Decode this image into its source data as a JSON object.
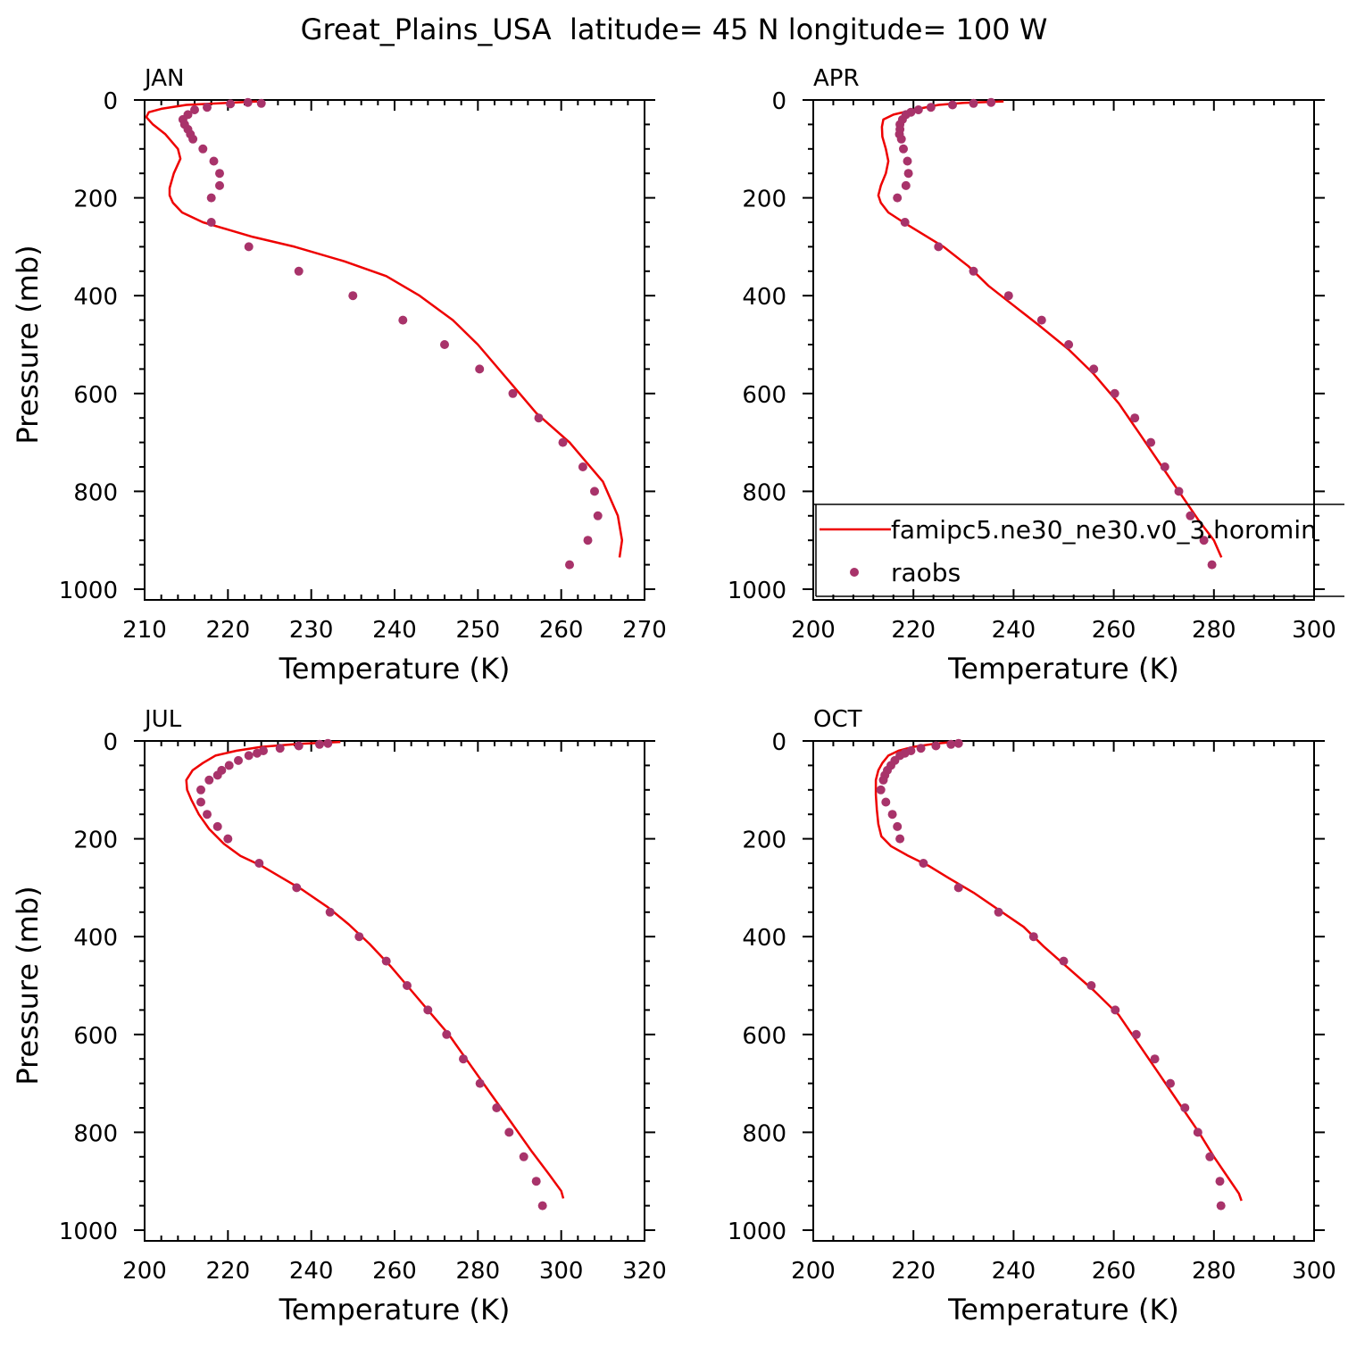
{
  "figure_title": "Great_Plains_USA  latitude= 45 N longitude= 100 W",
  "colors": {
    "model": "#ee0000",
    "obs": "#a8336a",
    "axis": "#000000"
  },
  "legend": {
    "model_label": "famipc5.ne30_ne30.v0_3.horomin",
    "obs_label": "raobs",
    "marker_icon": "dot-marker-icon",
    "line_icon": "line-sample-icon"
  },
  "chart_data": [
    {
      "type": "scatter",
      "panel": "JAN",
      "xlabel": "Temperature (K)",
      "ylabel": "Pressure (mb)",
      "xlim": [
        210,
        270
      ],
      "ylim": [
        1000,
        0
      ],
      "xticks": [
        "210",
        "220",
        "230",
        "240",
        "250",
        "260",
        "270"
      ],
      "yticks": [
        "0",
        "200",
        "400",
        "600",
        "800",
        "1000"
      ],
      "series": [
        {
          "name": "famipc5.ne30_ne30.v0_3.horomin",
          "style": "line",
          "points": [
            [
              223.5,
              3
            ],
            [
              215,
              10
            ],
            [
              212,
              18
            ],
            [
              210.5,
              25
            ],
            [
              210.2,
              35
            ],
            [
              211,
              50
            ],
            [
              212.5,
              70
            ],
            [
              214,
              100
            ],
            [
              214.3,
              120
            ],
            [
              213.5,
              150
            ],
            [
              213,
              180
            ],
            [
              213,
              195
            ],
            [
              213.4,
              210
            ],
            [
              214.5,
              230
            ],
            [
              217,
              250
            ],
            [
              220,
              265
            ],
            [
              223,
              280
            ],
            [
              228,
              300
            ],
            [
              234,
              330
            ],
            [
              239,
              360
            ],
            [
              243,
              400
            ],
            [
              247,
              450
            ],
            [
              250,
              500
            ],
            [
              254,
              580
            ],
            [
              257,
              640
            ],
            [
              261,
              700
            ],
            [
              265,
              780
            ],
            [
              266.8,
              850
            ],
            [
              267.3,
              900
            ],
            [
              267,
              935
            ]
          ]
        },
        {
          "name": "raobs",
          "style": "markers",
          "points": [
            [
              222.4,
              5
            ],
            [
              224,
              7
            ],
            [
              220.3,
              8
            ],
            [
              217.5,
              15
            ],
            [
              216,
              20
            ],
            [
              215.2,
              30
            ],
            [
              214.6,
              40
            ],
            [
              214.8,
              50
            ],
            [
              215.2,
              60
            ],
            [
              215.5,
              70
            ],
            [
              215.8,
              80
            ],
            [
              217,
              100
            ],
            [
              218.3,
              125
            ],
            [
              219,
              150
            ],
            [
              219,
              175
            ],
            [
              218,
              200
            ],
            [
              218,
              250
            ],
            [
              222.5,
              300
            ],
            [
              228.5,
              350
            ],
            [
              235,
              400
            ],
            [
              241,
              450
            ],
            [
              246,
              500
            ],
            [
              250.2,
              550
            ],
            [
              254.2,
              600
            ],
            [
              257.3,
              650
            ],
            [
              260.2,
              700
            ],
            [
              262.6,
              750
            ],
            [
              264,
              800
            ],
            [
              264.4,
              850
            ],
            [
              263.2,
              900
            ],
            [
              261,
              950
            ]
          ]
        }
      ]
    },
    {
      "type": "scatter",
      "panel": "APR",
      "xlabel": "Temperature (K)",
      "ylabel": "",
      "xlim": [
        200,
        300
      ],
      "ylim": [
        1000,
        0
      ],
      "xticks": [
        "200",
        "220",
        "240",
        "260",
        "280",
        "300"
      ],
      "yticks": [
        "0",
        "200",
        "400",
        "600",
        "800",
        "1000"
      ],
      "series": [
        {
          "name": "famipc5.ne30_ne30.v0_3.horomin",
          "style": "line",
          "points": [
            [
              238,
              3
            ],
            [
              230,
              6
            ],
            [
              225,
              10
            ],
            [
              220,
              20
            ],
            [
              216,
              30
            ],
            [
              214,
              40
            ],
            [
              213.7,
              55
            ],
            [
              213.8,
              75
            ],
            [
              214.5,
              100
            ],
            [
              215,
              125
            ],
            [
              214.5,
              150
            ],
            [
              213.5,
              175
            ],
            [
              213,
              195
            ],
            [
              213.5,
              210
            ],
            [
              215,
              230
            ],
            [
              218,
              250
            ],
            [
              222,
              275
            ],
            [
              226,
              300
            ],
            [
              231,
              340
            ],
            [
              235,
              380
            ],
            [
              240,
              420
            ],
            [
              245,
              460
            ],
            [
              251,
              510
            ],
            [
              256,
              560
            ],
            [
              261,
              620
            ],
            [
              265,
              680
            ],
            [
              269,
              740
            ],
            [
              273,
              800
            ],
            [
              277,
              860
            ],
            [
              280,
              900
            ],
            [
              281.5,
              935
            ]
          ]
        },
        {
          "name": "raobs",
          "style": "markers",
          "points": [
            [
              235.5,
              5
            ],
            [
              232,
              7
            ],
            [
              227.8,
              10
            ],
            [
              223.5,
              15
            ],
            [
              221,
              20
            ],
            [
              219.5,
              25
            ],
            [
              218.5,
              30
            ],
            [
              217.8,
              40
            ],
            [
              217.3,
              50
            ],
            [
              217.3,
              60
            ],
            [
              217.2,
              70
            ],
            [
              217.6,
              80
            ],
            [
              218,
              100
            ],
            [
              218.8,
              125
            ],
            [
              219,
              150
            ],
            [
              218.5,
              175
            ],
            [
              216.8,
              200
            ],
            [
              218.3,
              250
            ],
            [
              225,
              300
            ],
            [
              232,
              350
            ],
            [
              239,
              400
            ],
            [
              245.6,
              450
            ],
            [
              251,
              500
            ],
            [
              256,
              550
            ],
            [
              260.2,
              600
            ],
            [
              264.2,
              650
            ],
            [
              267.4,
              700
            ],
            [
              270.2,
              750
            ],
            [
              273,
              800
            ],
            [
              275.3,
              850
            ],
            [
              278,
              900
            ],
            [
              279.6,
              950
            ]
          ]
        }
      ]
    },
    {
      "type": "scatter",
      "panel": "JUL",
      "xlabel": "Temperature (K)",
      "ylabel": "Pressure (mb)",
      "xlim": [
        200,
        320
      ],
      "ylim": [
        1000,
        0
      ],
      "xticks": [
        "200",
        "220",
        "240",
        "260",
        "280",
        "300",
        "320"
      ],
      "yticks": [
        "0",
        "200",
        "400",
        "600",
        "800",
        "1000"
      ],
      "series": [
        {
          "name": "famipc5.ne30_ne30.v0_3.horomin",
          "style": "line",
          "points": [
            [
              247,
              2
            ],
            [
              237,
              6
            ],
            [
              228,
              12
            ],
            [
              222,
              20
            ],
            [
              217,
              30
            ],
            [
              214,
              45
            ],
            [
              211.5,
              60
            ],
            [
              210,
              80
            ],
            [
              210.2,
              100
            ],
            [
              211.2,
              120
            ],
            [
              213,
              150
            ],
            [
              215.5,
              180
            ],
            [
              219,
              210
            ],
            [
              223,
              235
            ],
            [
              228,
              255
            ],
            [
              233,
              280
            ],
            [
              238,
              305
            ],
            [
              244,
              340
            ],
            [
              249,
              375
            ],
            [
              254,
              415
            ],
            [
              259,
              460
            ],
            [
              263,
              500
            ],
            [
              268,
              550
            ],
            [
              273,
              600
            ],
            [
              278,
              660
            ],
            [
              283,
              720
            ],
            [
              288,
              780
            ],
            [
              293,
              840
            ],
            [
              297,
              885
            ],
            [
              300,
              920
            ],
            [
              300.5,
              935
            ]
          ]
        },
        {
          "name": "raobs",
          "style": "markers",
          "points": [
            [
              244,
              5
            ],
            [
              242,
              7
            ],
            [
              237,
              10
            ],
            [
              232.5,
              15
            ],
            [
              228.5,
              20
            ],
            [
              227,
              25
            ],
            [
              225,
              30
            ],
            [
              222.5,
              40
            ],
            [
              220.3,
              50
            ],
            [
              218.5,
              60
            ],
            [
              217.5,
              70
            ],
            [
              215.5,
              80
            ],
            [
              213.5,
              100
            ],
            [
              213.5,
              125
            ],
            [
              215,
              150
            ],
            [
              217.5,
              175
            ],
            [
              220,
              200
            ],
            [
              227.5,
              250
            ],
            [
              236.5,
              300
            ],
            [
              244.5,
              350
            ],
            [
              251.5,
              400
            ],
            [
              258,
              450
            ],
            [
              263,
              500
            ],
            [
              268,
              550
            ],
            [
              272.5,
              600
            ],
            [
              276.5,
              650
            ],
            [
              280.5,
              700
            ],
            [
              284.5,
              750
            ],
            [
              287.5,
              800
            ],
            [
              291,
              850
            ],
            [
              294,
              900
            ],
            [
              295.5,
              950
            ]
          ]
        }
      ]
    },
    {
      "type": "scatter",
      "panel": "OCT",
      "xlabel": "Temperature (K)",
      "ylabel": "",
      "xlim": [
        200,
        300
      ],
      "ylim": [
        1000,
        0
      ],
      "xticks": [
        "200",
        "220",
        "240",
        "260",
        "280",
        "300"
      ],
      "yticks": [
        "0",
        "200",
        "400",
        "600",
        "800",
        "1000"
      ],
      "series": [
        {
          "name": "famipc5.ne30_ne30.v0_3.horomin",
          "style": "line",
          "points": [
            [
              228,
              2
            ],
            [
              224,
              6
            ],
            [
              220,
              12
            ],
            [
              217,
              20
            ],
            [
              215,
              30
            ],
            [
              213.8,
              45
            ],
            [
              213,
              60
            ],
            [
              212.5,
              80
            ],
            [
              212.5,
              110
            ],
            [
              212.7,
              140
            ],
            [
              213,
              170
            ],
            [
              213.6,
              195
            ],
            [
              215.5,
              215
            ],
            [
              219,
              235
            ],
            [
              223,
              255
            ],
            [
              227,
              280
            ],
            [
              232,
              310
            ],
            [
              237,
              345
            ],
            [
              242,
              380
            ],
            [
              246,
              420
            ],
            [
              251,
              465
            ],
            [
              256,
              510
            ],
            [
              261,
              560
            ],
            [
              265,
              620
            ],
            [
              269,
              680
            ],
            [
              273,
              740
            ],
            [
              277,
              800
            ],
            [
              280,
              850
            ],
            [
              283,
              895
            ],
            [
              285,
              925
            ],
            [
              285.5,
              940
            ]
          ]
        },
        {
          "name": "raobs",
          "style": "markers",
          "points": [
            [
              229,
              5
            ],
            [
              227.5,
              7
            ],
            [
              224.5,
              10
            ],
            [
              221.5,
              15
            ],
            [
              219.5,
              20
            ],
            [
              218.3,
              25
            ],
            [
              217.3,
              30
            ],
            [
              216.3,
              40
            ],
            [
              215.5,
              50
            ],
            [
              214.8,
              60
            ],
            [
              214.3,
              70
            ],
            [
              214.0,
              80
            ],
            [
              213.5,
              100
            ],
            [
              214.5,
              125
            ],
            [
              215.8,
              150
            ],
            [
              216.8,
              175
            ],
            [
              217.3,
              200
            ],
            [
              222,
              250
            ],
            [
              229,
              300
            ],
            [
              237,
              350
            ],
            [
              244,
              400
            ],
            [
              250,
              450
            ],
            [
              255.5,
              500
            ],
            [
              260.3,
              550
            ],
            [
              264.5,
              600
            ],
            [
              268.2,
              650
            ],
            [
              271.3,
              700
            ],
            [
              274.2,
              750
            ],
            [
              276.8,
              800
            ],
            [
              279.2,
              850
            ],
            [
              281.2,
              900
            ],
            [
              281.4,
              950
            ]
          ]
        }
      ]
    }
  ]
}
